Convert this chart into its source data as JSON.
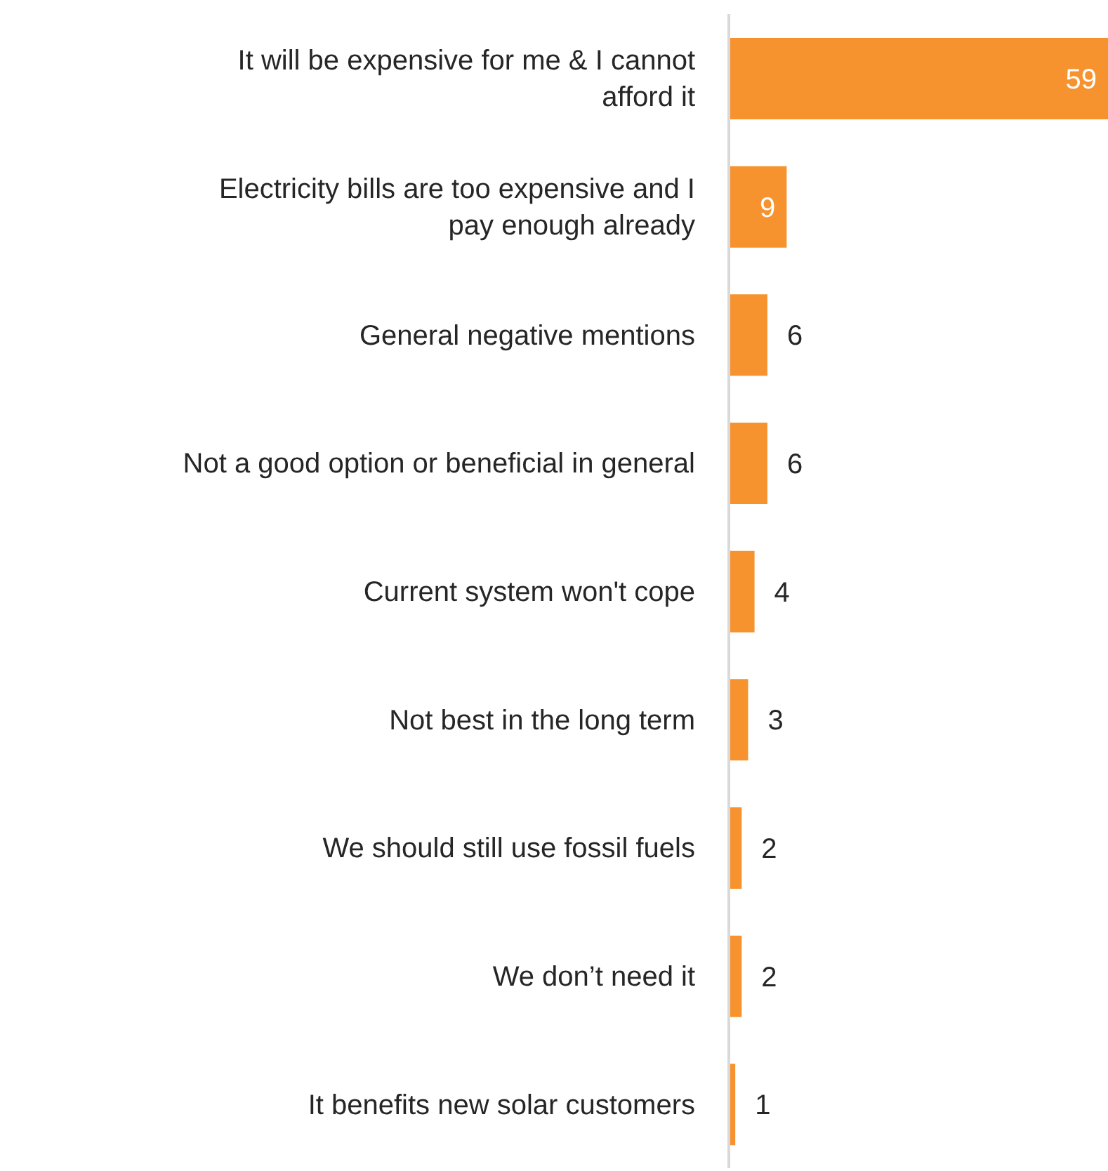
{
  "chart_data": {
    "type": "bar",
    "orientation": "horizontal",
    "categories": [
      "It will be expensive for me & I cannot afford it",
      "Electricity  bills are too expensive and I pay enough already",
      "General negative mentions",
      "Not a good option or beneficial in general",
      "Current system won't cope",
      "Not best in the long term",
      "We should still use fossil fuels",
      "We don’t need it",
      "It benefits new solar customers"
    ],
    "values": [
      59,
      9,
      6,
      6,
      4,
      3,
      2,
      2,
      1
    ],
    "color": "#f7932f",
    "data_labels": true,
    "grid": false,
    "legend": false
  }
}
